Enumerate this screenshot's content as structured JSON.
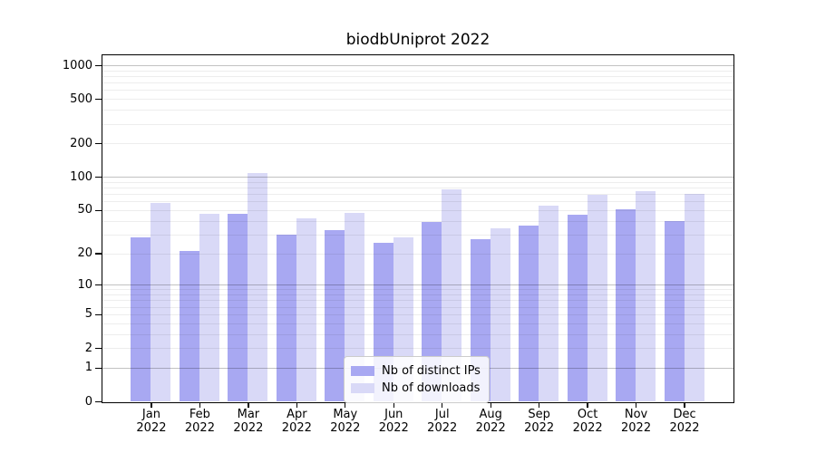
{
  "title": "biodbUniprot 2022",
  "chart_data": {
    "type": "bar",
    "title": "biodbUniprot 2022",
    "categories": [
      "Jan 2022",
      "Feb 2022",
      "Mar 2022",
      "Apr 2022",
      "May 2022",
      "Jun 2022",
      "Jul 2022",
      "Aug 2022",
      "Sep 2022",
      "Oct 2022",
      "Nov 2022",
      "Dec 2022"
    ],
    "month_labels": [
      "Jan",
      "Feb",
      "Mar",
      "Apr",
      "May",
      "Jun",
      "Jul",
      "Aug",
      "Sep",
      "Oct",
      "Nov",
      "Dec"
    ],
    "year_label": "2022",
    "series": [
      {
        "name": "Nb of distinct IPs",
        "color": "#a8a8f2",
        "values": [
          28,
          21,
          46,
          30,
          33,
          25,
          39,
          27,
          36,
          45,
          51,
          40
        ]
      },
      {
        "name": "Nb of downloads",
        "color": "#d9d9f7",
        "values": [
          58,
          46,
          108,
          42,
          47,
          28,
          77,
          34,
          55,
          69,
          74,
          70
        ]
      }
    ],
    "y_ticks": [
      0,
      1,
      2,
      5,
      10,
      20,
      50,
      100,
      200,
      500,
      1000
    ],
    "y_scale": "log1p",
    "y_max": 1230,
    "grid": true,
    "legend_position": "lower center",
    "colors": {
      "major_grid": "rgba(0,0,0,0.24)",
      "minor_grid": "rgba(0,0,0,0.07)",
      "axis": "#000000"
    }
  }
}
